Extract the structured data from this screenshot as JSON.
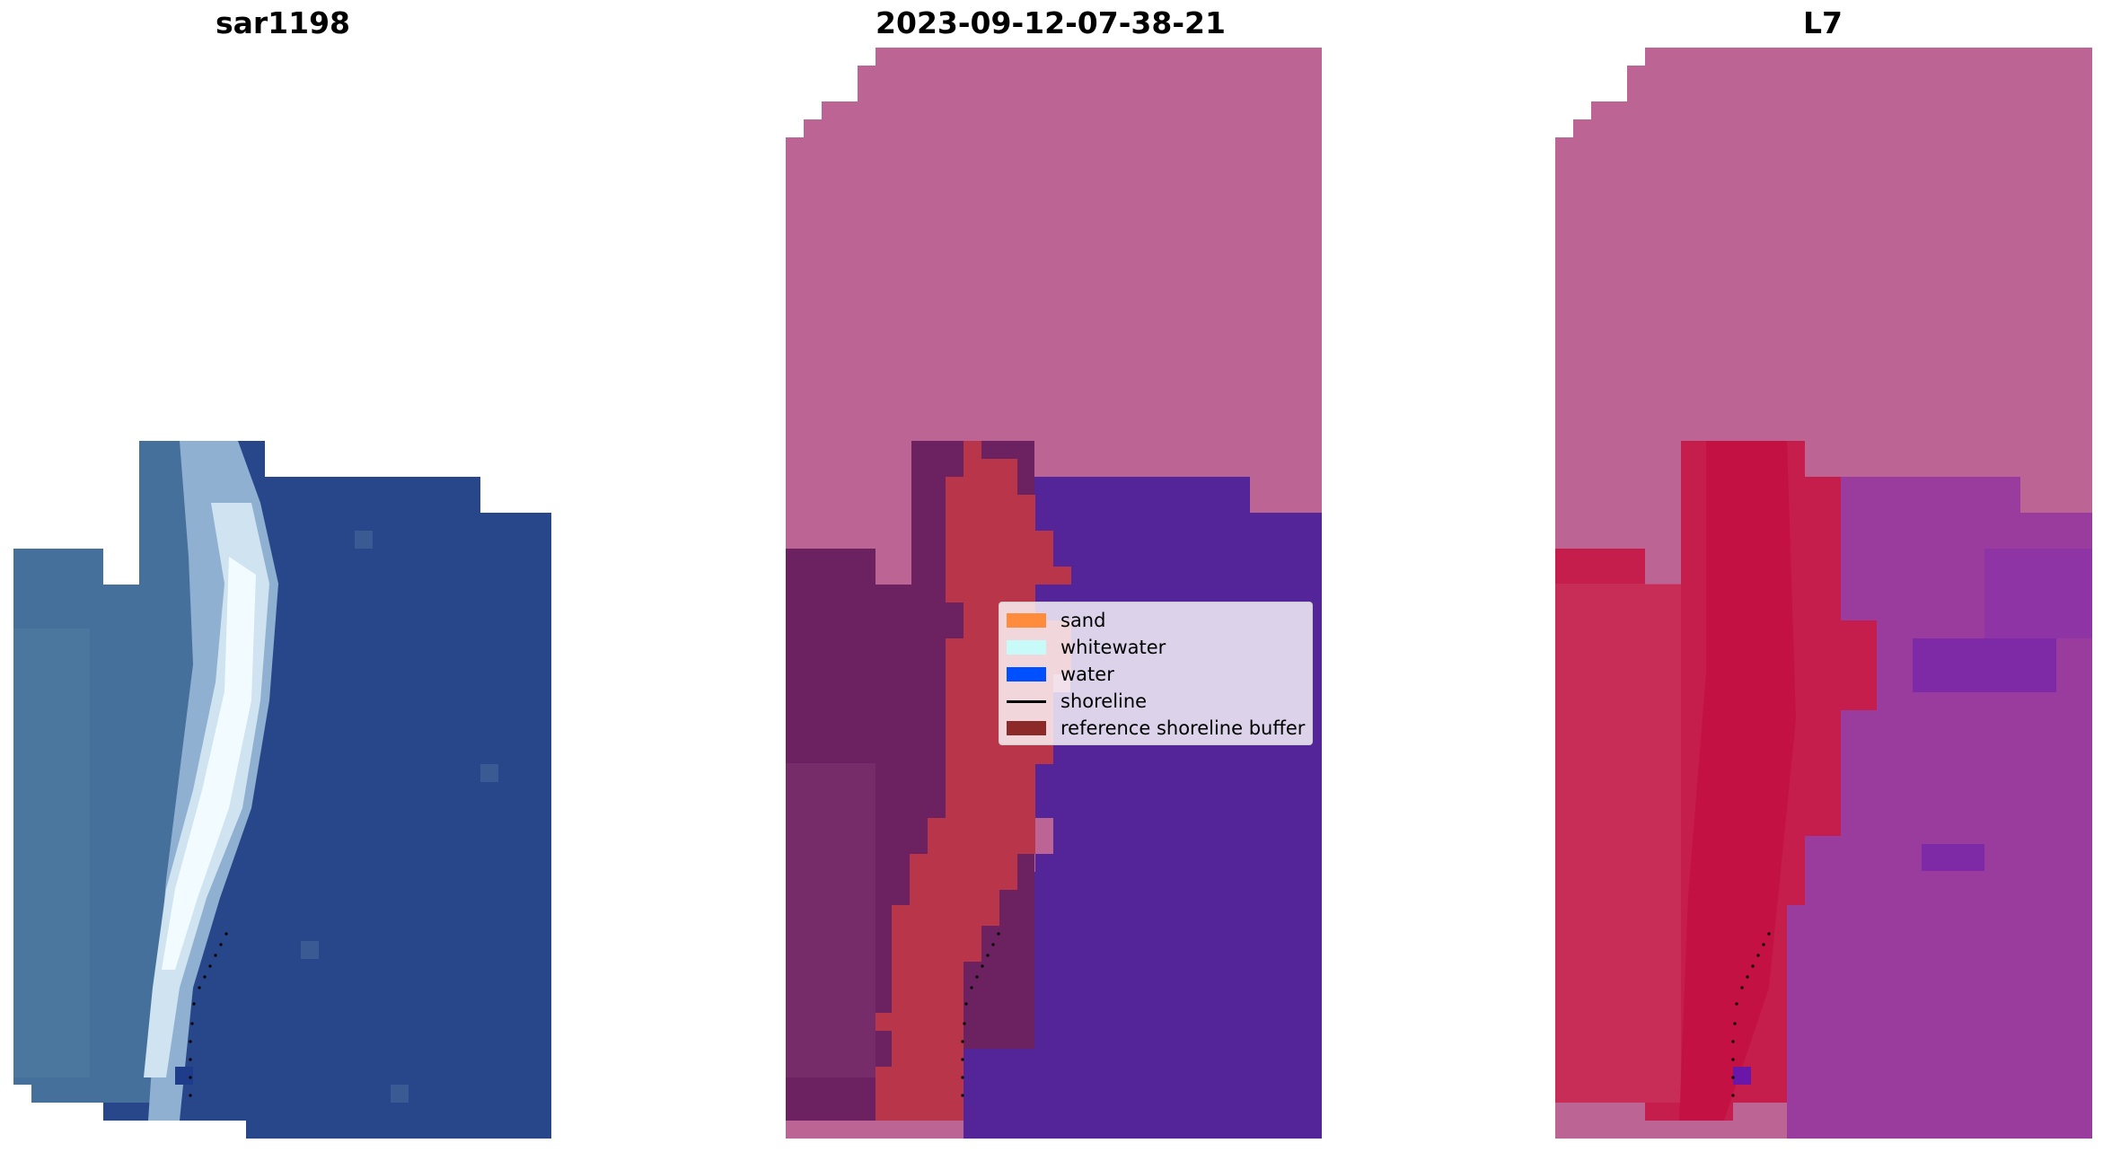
{
  "titles": {
    "panel1": "sar1198",
    "panel2": "2023-09-12-07-38-21",
    "panel3": "L7"
  },
  "legend": {
    "items": [
      {
        "label": "sand",
        "color": "#ff8c3c",
        "kind": "patch"
      },
      {
        "label": "whitewater",
        "color": "#c8fafa",
        "kind": "patch"
      },
      {
        "label": "water",
        "color": "#0050ff",
        "kind": "patch"
      },
      {
        "label": "shoreline",
        "color": "#000000",
        "kind": "line"
      },
      {
        "label": "reference shoreline buffer",
        "color": "#8c2a2a",
        "kind": "patch"
      }
    ]
  },
  "colors": {
    "rgb_water": "#28478a",
    "rgb_sand_shallow": "#5a7aa6",
    "rgb_whitewater": "#e8f2f8",
    "class_nodata": "#bc6494",
    "class_water": "#532599",
    "class_buffer": "#b8354a",
    "class_land": "#6c2260",
    "ndwi_land": "#c51e4c",
    "ndwi_water": "#9a3c9e",
    "ndwi_nodata": "#bc6494"
  }
}
